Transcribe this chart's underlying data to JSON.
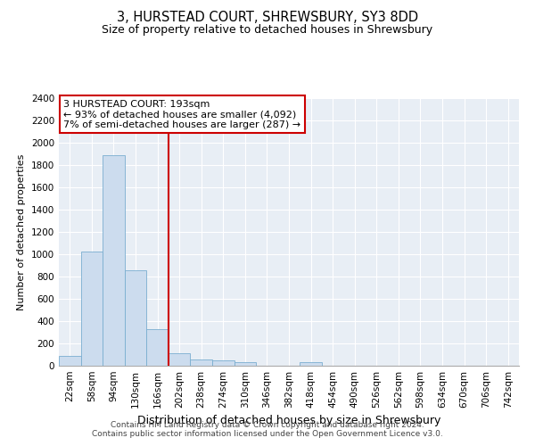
{
  "title": "3, HURSTEAD COURT, SHREWSBURY, SY3 8DD",
  "subtitle": "Size of property relative to detached houses in Shrewsbury",
  "xlabel": "Distribution of detached houses by size in Shrewsbury",
  "ylabel": "Number of detached properties",
  "categories": [
    "22sqm",
    "58sqm",
    "94sqm",
    "130sqm",
    "166sqm",
    "202sqm",
    "238sqm",
    "274sqm",
    "310sqm",
    "346sqm",
    "382sqm",
    "418sqm",
    "454sqm",
    "490sqm",
    "526sqm",
    "562sqm",
    "598sqm",
    "634sqm",
    "670sqm",
    "706sqm",
    "742sqm"
  ],
  "values": [
    85,
    1025,
    1890,
    860,
    325,
    115,
    55,
    45,
    35,
    0,
    0,
    30,
    0,
    0,
    0,
    0,
    0,
    0,
    0,
    0,
    0
  ],
  "bar_color": "#ccdcee",
  "bar_edge_color": "#7aaed0",
  "vline_x": 5.0,
  "vline_color": "#cc0000",
  "annotation_box_text": "3 HURSTEAD COURT: 193sqm\n← 93% of detached houses are smaller (4,092)\n7% of semi-detached houses are larger (287) →",
  "annotation_box_color": "#cc0000",
  "ylim": [
    0,
    2400
  ],
  "yticks": [
    0,
    200,
    400,
    600,
    800,
    1000,
    1200,
    1400,
    1600,
    1800,
    2000,
    2200,
    2400
  ],
  "footer_line1": "Contains HM Land Registry data © Crown copyright and database right 2024.",
  "footer_line2": "Contains public sector information licensed under the Open Government Licence v3.0.",
  "bg_color": "#e8eef5",
  "grid_color": "#ffffff",
  "title_fontsize": 10.5,
  "subtitle_fontsize": 9,
  "xlabel_fontsize": 9,
  "ylabel_fontsize": 8,
  "tick_fontsize": 7.5,
  "annotation_fontsize": 8,
  "footer_fontsize": 6.5
}
